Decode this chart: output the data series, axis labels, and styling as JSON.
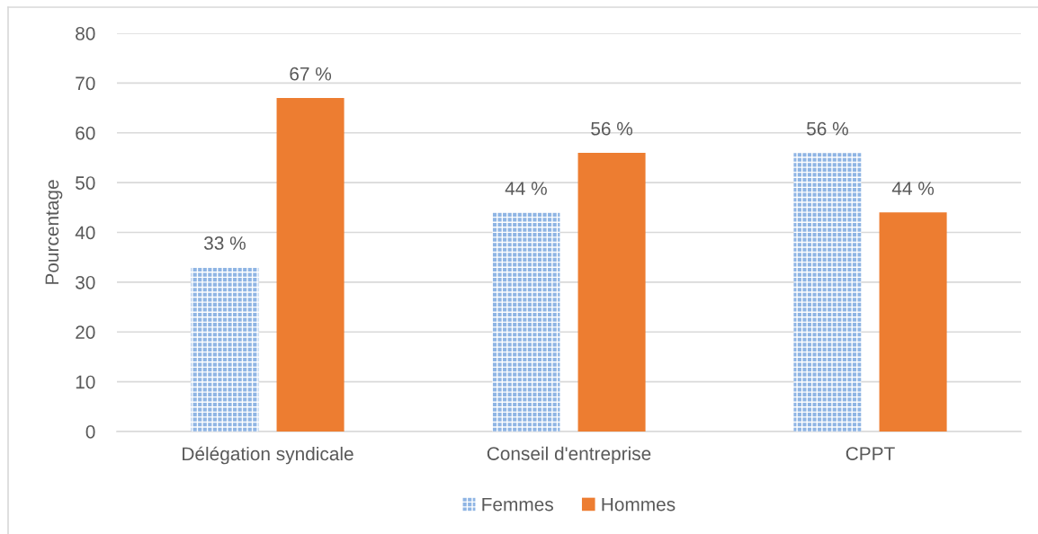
{
  "chart_data": {
    "type": "bar",
    "categories": [
      "Délégation syndicale",
      "Conseil d'entreprise",
      "CPPT"
    ],
    "series": [
      {
        "name": "Femmes",
        "color": "#8fb5e4",
        "values": [
          33,
          44,
          56
        ],
        "value_labels": [
          "33 %",
          "44 %",
          "56 %"
        ]
      },
      {
        "name": "Hommes",
        "color": "#ed7d31",
        "values": [
          67,
          56,
          44
        ],
        "value_labels": [
          "67 %",
          "56 %",
          "44 %"
        ]
      }
    ],
    "ylabel": "Pourcentage",
    "ylim": [
      0,
      80
    ],
    "yticks": [
      0,
      10,
      20,
      30,
      40,
      50,
      60,
      70,
      80
    ],
    "grid": "y",
    "legend": "bottom"
  }
}
